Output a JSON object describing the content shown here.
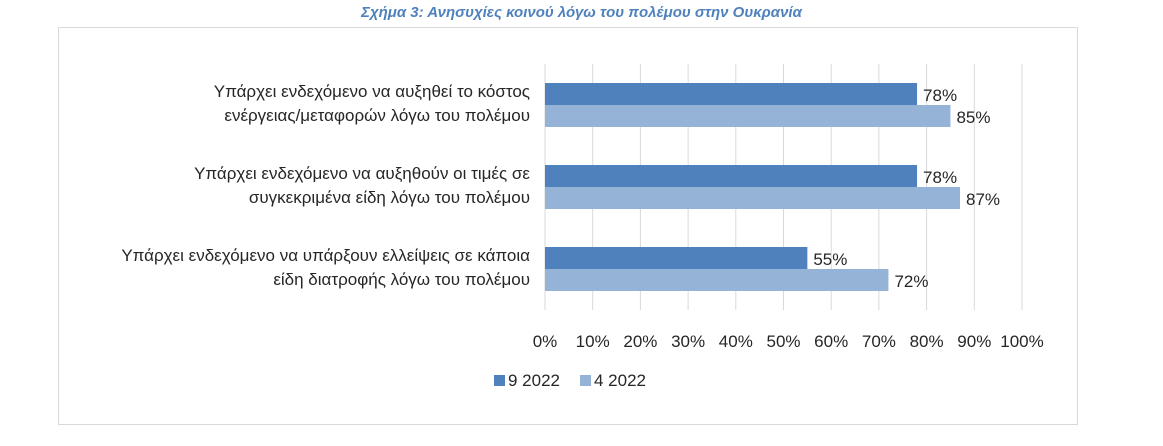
{
  "page": {
    "title": "Σχήμα 3: Ανησυχίες κοινού λόγω του πολέμου στην Ουκρανία"
  },
  "chart_data": {
    "type": "bar",
    "orientation": "horizontal",
    "title": "Σχήμα 3: Ανησυχίες κοινού λόγω του πολέμου στην Ουκρανία",
    "categories": [
      [
        "Υπάρχει ενδεχόμενο να αυξηθεί το κόστος",
        "ενέργειας/μεταφορών λόγω του πολέμου"
      ],
      [
        "Υπάρχει ενδεχόμενο να αυξηθούν οι τιμές σε",
        "συγκεκριμένα είδη λόγω του πολέμου"
      ],
      [
        "Υπάρχει ενδεχόμενο να υπάρξουν ελλείψεις σε κάποια",
        "είδη διατροφής λόγω του πολέμου"
      ]
    ],
    "series": [
      {
        "name": "9 2022",
        "color": "#4f81bd",
        "values": [
          78,
          78,
          55
        ]
      },
      {
        "name": "4 2022",
        "color": "#95b3d7",
        "values": [
          85,
          87,
          72
        ]
      }
    ],
    "x_ticks": [
      "0%",
      "10%",
      "20%",
      "30%",
      "40%",
      "50%",
      "60%",
      "70%",
      "80%",
      "90%",
      "100%"
    ],
    "xlim": [
      0,
      100
    ],
    "value_suffix": "%",
    "grid": "vertical",
    "grid_color": "#d9d9d9",
    "legend_position": "bottom"
  }
}
